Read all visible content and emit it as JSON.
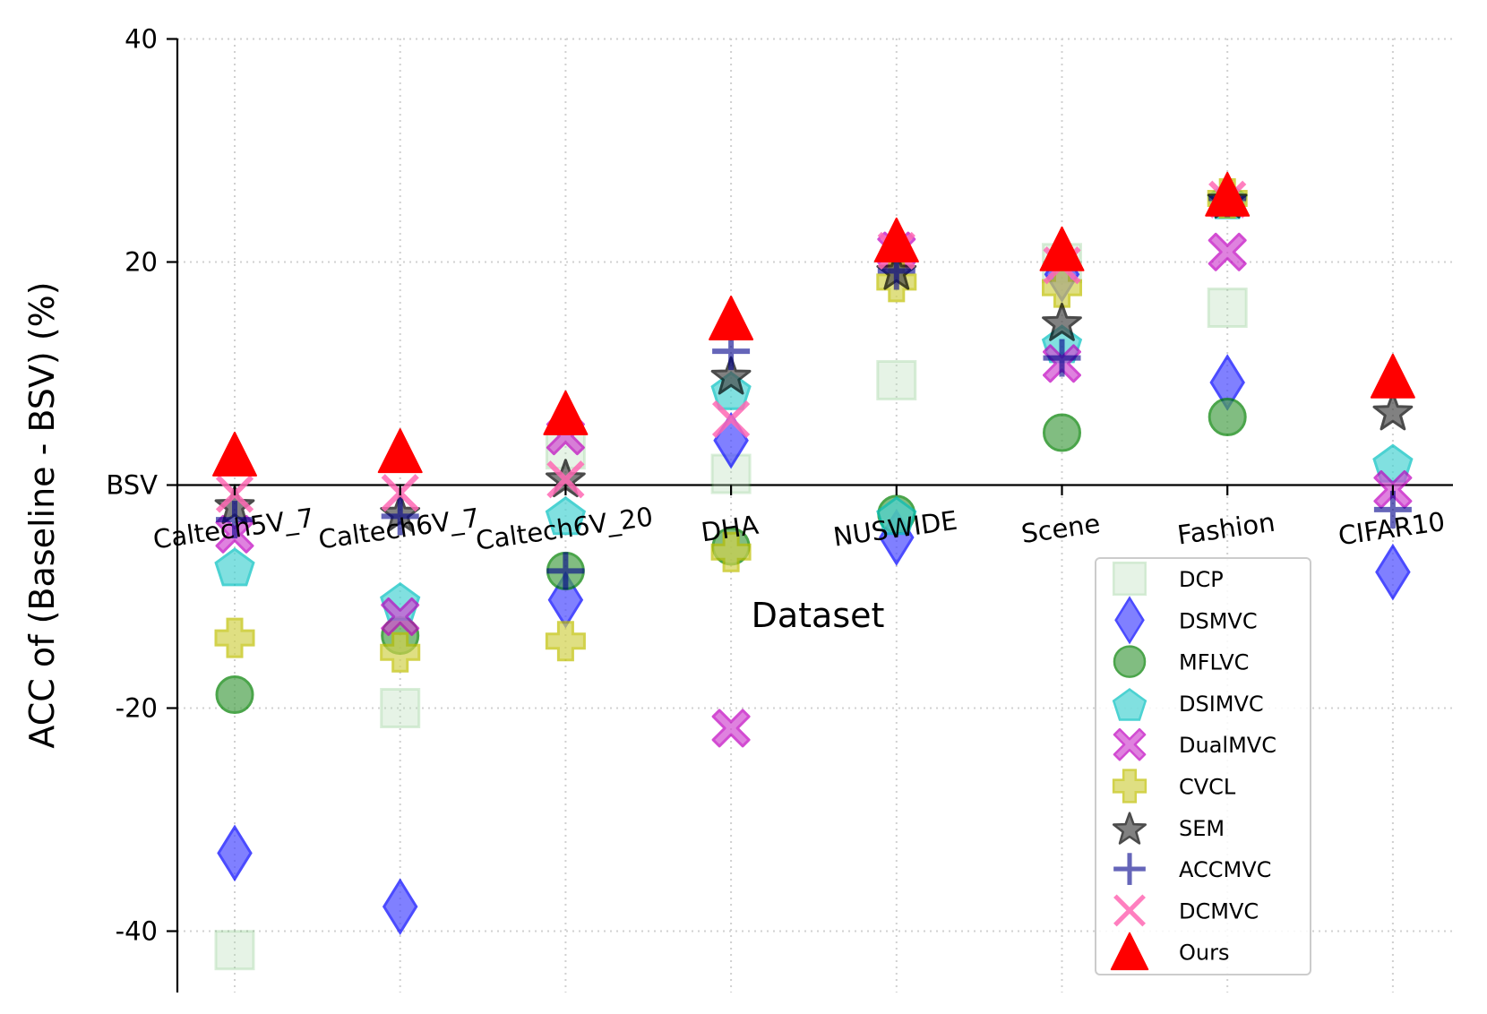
{
  "chart_data": {
    "type": "scatter",
    "title": "",
    "xlabel": "Dataset",
    "ylabel": "ACC of (Baseline - BSV) (%)",
    "categories": [
      "Caltech5V_7",
      "Caltech6V_7",
      "Caltech6V_20",
      "DHA",
      "NUSWIDE",
      "Scene",
      "Fashion",
      "CIFAR10"
    ],
    "yticks": [
      {
        "value": 40,
        "label": "40"
      },
      {
        "value": 20,
        "label": "20"
      },
      {
        "value": 0,
        "label": "BSV"
      },
      {
        "value": -20,
        "label": "-20"
      },
      {
        "value": -40,
        "label": "-40"
      }
    ],
    "ylim": [
      -45.5,
      40
    ],
    "grid": true,
    "baseline": {
      "value": 0,
      "label": "BSV"
    },
    "legend_position": "lower-right",
    "series": [
      {
        "name": "DCP",
        "marker": "square",
        "color": "#2ca02c",
        "fill": "#b9dfb9",
        "alpha": 0.35,
        "values": [
          -41.7,
          -20.0,
          3.2,
          1.0,
          9.4,
          19.9,
          15.9,
          null
        ]
      },
      {
        "name": "DSMVC",
        "marker": "thin-diamond",
        "color": "#0000ff",
        "fill": "#4b4bff",
        "alpha": 0.7,
        "values": [
          -33.0,
          -37.8,
          -10.3,
          4.0,
          -4.7,
          18.9,
          9.2,
          -7.8
        ]
      },
      {
        "name": "MFLVC",
        "marker": "circle",
        "color": "#008000",
        "fill": "#4ca24c",
        "alpha": 0.7,
        "values": [
          -18.8,
          -13.5,
          -7.7,
          -5.5,
          -2.6,
          4.7,
          6.1,
          null
        ]
      },
      {
        "name": "DSIMVC",
        "marker": "pentagon",
        "color": "#00bfbf",
        "fill": "#4dd3d3",
        "alpha": 0.7,
        "values": [
          -7.2,
          -10.3,
          -2.6,
          8.6,
          -2.6,
          12.8,
          25.7,
          2.1
        ]
      },
      {
        "name": "DualMVC",
        "marker": "x-filled",
        "color": "#bf00bf",
        "fill": "#d24ed2",
        "alpha": 0.7,
        "values": [
          -4.4,
          -11.8,
          4.4,
          -21.8,
          21.0,
          10.9,
          20.9,
          -0.4
        ]
      },
      {
        "name": "CVCL",
        "marker": "plus-filled",
        "color": "#bfbf00",
        "fill": "#d2d24e",
        "alpha": 0.7,
        "values": [
          -13.7,
          -15.0,
          -14.0,
          -6.0,
          18.2,
          17.7,
          25.7,
          null
        ]
      },
      {
        "name": "SEM",
        "marker": "star",
        "color": "#000000",
        "fill": "#4c4c4c",
        "alpha": 0.7,
        "values": [
          -1.7,
          -2.4,
          0.7,
          9.9,
          19.3,
          14.7,
          25.7,
          6.7
        ]
      },
      {
        "name": "ACCMVC",
        "marker": "plus",
        "color": "#00008b",
        "fill": "none",
        "alpha": 0.6,
        "values": [
          -3.1,
          -2.8,
          -7.7,
          12.0,
          19.2,
          11.4,
          25.7,
          -2.2
        ]
      },
      {
        "name": "DCMVC",
        "marker": "x",
        "color": "#ff69b4",
        "fill": "none",
        "alpha": 0.85,
        "values": [
          -0.8,
          -0.7,
          0.5,
          5.9,
          21.0,
          19.7,
          25.6,
          null
        ]
      },
      {
        "name": "Ours",
        "marker": "triangle-up",
        "color": "#ff0000",
        "fill": "#ff0000",
        "alpha": 1.0,
        "values": [
          2.7,
          3.0,
          6.4,
          14.9,
          21.9,
          21.1,
          26.0,
          9.7
        ]
      }
    ]
  }
}
